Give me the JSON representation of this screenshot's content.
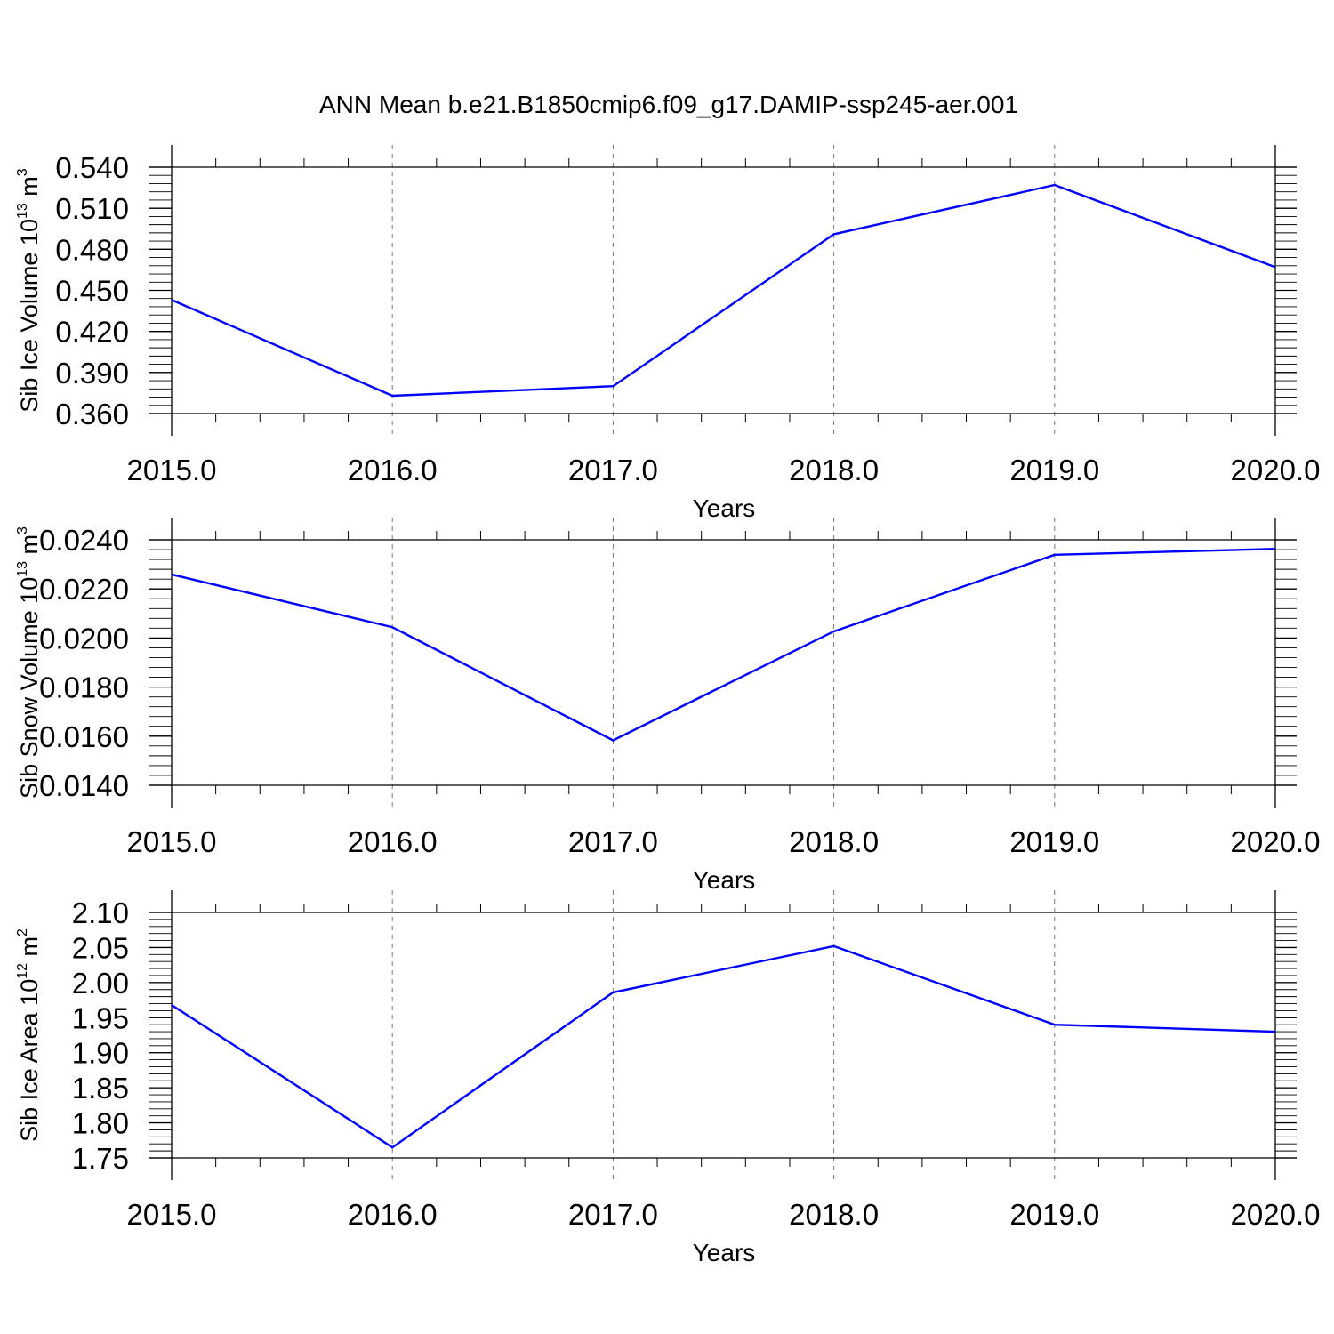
{
  "title": "ANN Mean b.e21.B1850cmip6.f09_g17.DAMIP-ssp245-aer.001",
  "colors": {
    "line": "#0000ff",
    "axis": "#000000",
    "grid": "#777777"
  },
  "chart_data": [
    {
      "type": "line",
      "xlabel": "Years",
      "ylabel": {
        "base": "Sib Ice Volume 10",
        "exp1": "13",
        "mid": " m",
        "exp2": "3"
      },
      "x": [
        2015,
        2016,
        2017,
        2018,
        2019,
        2020
      ],
      "values": [
        0.443,
        0.373,
        0.38,
        0.491,
        0.527,
        0.467
      ],
      "xlim": [
        2015.0,
        2020.0
      ],
      "ylim": [
        0.36,
        0.54
      ],
      "xticks": [
        "2015.0",
        "2016.0",
        "2017.0",
        "2018.0",
        "2019.0",
        "2020.0"
      ],
      "yticks": [
        "0.540",
        "0.510",
        "0.480",
        "0.450",
        "0.420",
        "0.390",
        "0.360"
      ],
      "ytick_values": [
        0.54,
        0.51,
        0.48,
        0.45,
        0.42,
        0.39,
        0.36
      ],
      "grid": "vertical dashed at major x ticks"
    },
    {
      "type": "line",
      "xlabel": "Years",
      "ylabel": {
        "base": "Sib Snow Volume 10",
        "exp1": "13",
        "mid": " m",
        "exp2": "3"
      },
      "x": [
        2015,
        2016,
        2017,
        2018,
        2019,
        2020
      ],
      "values": [
        0.02259,
        0.02044,
        0.01583,
        0.02027,
        0.02339,
        0.02363
      ],
      "xlim": [
        2015.0,
        2020.0
      ],
      "ylim": [
        0.014,
        0.024
      ],
      "xticks": [
        "2015.0",
        "2016.0",
        "2017.0",
        "2018.0",
        "2019.0",
        "2020.0"
      ],
      "yticks": [
        "0.0240",
        "0.0220",
        "0.0200",
        "0.0180",
        "0.0160",
        "0.0140"
      ],
      "ytick_values": [
        0.024,
        0.022,
        0.02,
        0.018,
        0.016,
        0.014
      ],
      "grid": "vertical dashed at major x ticks"
    },
    {
      "type": "line",
      "xlabel": "Years",
      "ylabel": {
        "base": "Sib Ice Area 10",
        "exp1": "12",
        "mid": " m",
        "exp2": "2"
      },
      "x": [
        2015,
        2016,
        2017,
        2018,
        2019,
        2020
      ],
      "values": [
        1.968,
        1.765,
        1.986,
        2.052,
        1.94,
        1.93
      ],
      "xlim": [
        2015.0,
        2020.0
      ],
      "ylim": [
        1.75,
        2.1
      ],
      "xticks": [
        "2015.0",
        "2016.0",
        "2017.0",
        "2018.0",
        "2019.0",
        "2020.0"
      ],
      "yticks": [
        "2.10",
        "2.05",
        "2.00",
        "1.95",
        "1.90",
        "1.85",
        "1.80",
        "1.75"
      ],
      "ytick_values": [
        2.1,
        2.05,
        2.0,
        1.95,
        1.9,
        1.85,
        1.8,
        1.75
      ],
      "grid": "vertical dashed at major x ticks"
    }
  ]
}
